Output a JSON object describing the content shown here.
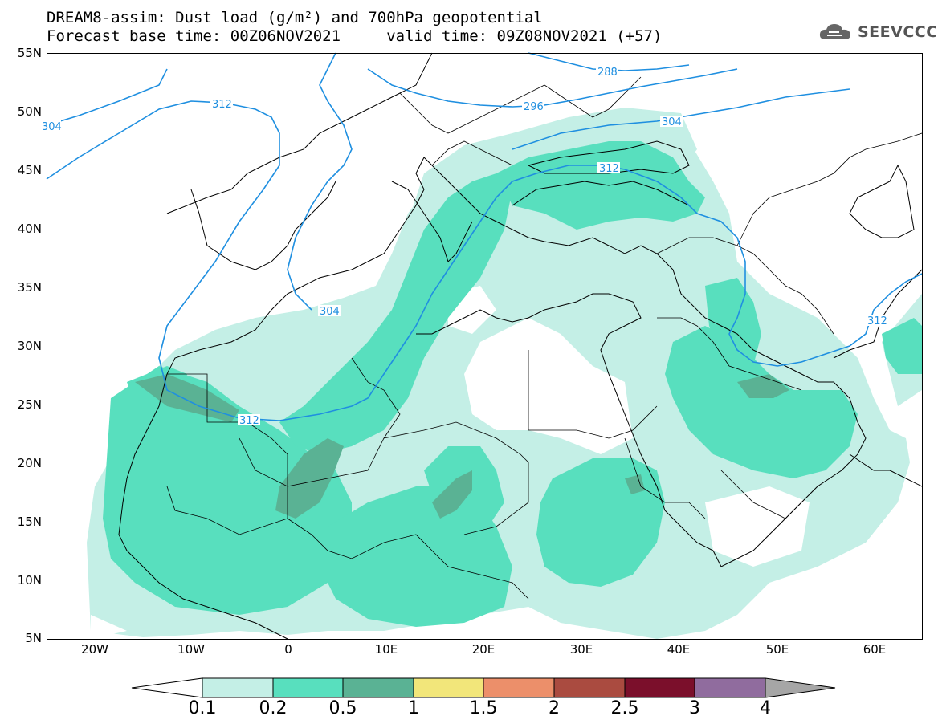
{
  "header": {
    "title_line1": "DREAM8-assim: Dust load (g/m²) and 700hPa geopotential",
    "title_line2": "Forecast base time: 00Z06NOV2021     valid time: 09Z08NOV2021 (+57)",
    "logo_text": "SEEVCCC",
    "logo_icon": "cloud-icon"
  },
  "axes": {
    "lat_labels": [
      "55N",
      "50N",
      "45N",
      "40N",
      "35N",
      "30N",
      "25N",
      "20N",
      "15N",
      "10N",
      "5N"
    ],
    "lon_labels": [
      "20W",
      "10W",
      "0",
      "10E",
      "20E",
      "30E",
      "40E",
      "50E",
      "60E"
    ]
  },
  "contours": {
    "color": "#1f8fe0",
    "labels": [
      "312",
      "304",
      "296",
      "288",
      "304",
      "312",
      "312",
      "304",
      "312"
    ]
  },
  "colorbar": {
    "labels": [
      "0.1",
      "0.2",
      "0.5",
      "1",
      "1.5",
      "2",
      "2.5",
      "3",
      "4"
    ],
    "colors": [
      "#ffffff",
      "#c4efe6",
      "#58dfbe",
      "#5ab294",
      "#f2e67a",
      "#ec8f6a",
      "#aa4b40",
      "#7b0f2b",
      "#906c9e",
      "#a6a6a6"
    ]
  },
  "dust_colors": {
    "light": "#c4efe6",
    "medium": "#58dfbe",
    "heavy": "#5ab294",
    "max": "#6e8f82"
  }
}
